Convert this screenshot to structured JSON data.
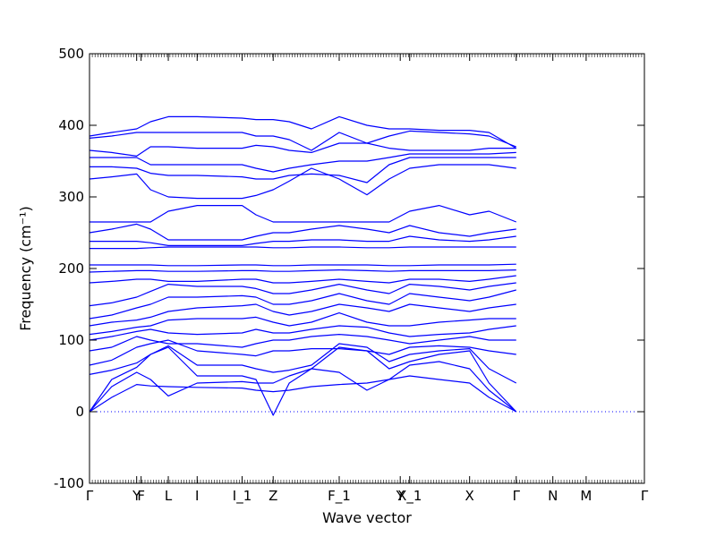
{
  "chart_data": {
    "type": "line",
    "xlabel": "Wave vector",
    "ylabel": "Frequency (cm⁻¹)",
    "ylim": [
      -100,
      500
    ],
    "yticks": [
      -100,
      0,
      100,
      200,
      300,
      400,
      500
    ],
    "xlim": [
      0,
      1
    ],
    "grid": false,
    "line_color": "#0000ff",
    "zero_line": {
      "y": 0,
      "style": "dotted",
      "color": "#0000ff"
    },
    "high_symmetry_points": [
      {
        "label": "Γ",
        "x": 0.0
      },
      {
        "label": "Y",
        "x": 0.085
      },
      {
        "label": "F",
        "x": 0.093
      },
      {
        "label": "L",
        "x": 0.142
      },
      {
        "label": "I",
        "x": 0.194
      },
      {
        "label": "I_1",
        "x": 0.275
      },
      {
        "label": "Z",
        "x": 0.331
      },
      {
        "label": "F_1",
        "x": 0.45
      },
      {
        "label": "Y",
        "x": 0.56
      },
      {
        "label": "X_1",
        "x": 0.577
      },
      {
        "label": "X",
        "x": 0.685
      },
      {
        "label": "Γ",
        "x": 0.769
      },
      {
        "label": "N",
        "x": 0.835
      },
      {
        "label": "M",
        "x": 0.895
      },
      {
        "label": "Γ",
        "x": 1.0
      }
    ],
    "series": [
      {
        "x": [
          0,
          0.04,
          0.085,
          0.11,
          0.142,
          0.194,
          0.275,
          0.3,
          0.331,
          0.36,
          0.4,
          0.45,
          0.5,
          0.54,
          0.577,
          0.63,
          0.685,
          0.72,
          0.769
        ],
        "y": [
          0,
          20,
          38,
          36,
          35,
          34,
          33,
          30,
          28,
          30,
          35,
          38,
          40,
          45,
          50,
          45,
          40,
          20,
          0
        ]
      },
      {
        "x": [
          0,
          0.04,
          0.085,
          0.11,
          0.142,
          0.194,
          0.275,
          0.3,
          0.331,
          0.36,
          0.4,
          0.45,
          0.5,
          0.54,
          0.577,
          0.63,
          0.685,
          0.72,
          0.769
        ],
        "y": [
          0,
          35,
          55,
          45,
          22,
          40,
          42,
          40,
          40,
          50,
          60,
          55,
          30,
          45,
          65,
          70,
          60,
          30,
          0
        ]
      },
      {
        "x": [
          0,
          0.04,
          0.085,
          0.11,
          0.142,
          0.194,
          0.275,
          0.3,
          0.331,
          0.36,
          0.4,
          0.45,
          0.5,
          0.54,
          0.577,
          0.63,
          0.685,
          0.72,
          0.769
        ],
        "y": [
          0,
          45,
          62,
          80,
          90,
          50,
          50,
          45,
          -5,
          40,
          60,
          90,
          85,
          60,
          70,
          80,
          85,
          40,
          0
        ]
      },
      {
        "x": [
          0,
          0.04,
          0.085,
          0.11,
          0.142,
          0.194,
          0.275,
          0.3,
          0.331,
          0.36,
          0.4,
          0.45,
          0.5,
          0.54,
          0.577,
          0.63,
          0.685,
          0.72,
          0.769
        ],
        "y": [
          52,
          58,
          68,
          80,
          92,
          65,
          65,
          60,
          55,
          58,
          65,
          95,
          90,
          70,
          80,
          85,
          88,
          60,
          40
        ]
      },
      {
        "x": [
          0,
          0.04,
          0.085,
          0.11,
          0.142,
          0.194,
          0.275,
          0.3,
          0.331,
          0.36,
          0.4,
          0.45,
          0.5,
          0.54,
          0.577,
          0.63,
          0.685,
          0.72,
          0.769
        ],
        "y": [
          65,
          72,
          90,
          95,
          100,
          85,
          80,
          78,
          85,
          85,
          88,
          88,
          85,
          80,
          90,
          92,
          90,
          85,
          80
        ]
      },
      {
        "x": [
          0,
          0.04,
          0.085,
          0.11,
          0.142,
          0.194,
          0.275,
          0.3,
          0.331,
          0.36,
          0.4,
          0.45,
          0.5,
          0.54,
          0.577,
          0.63,
          0.685,
          0.72,
          0.769
        ],
        "y": [
          85,
          90,
          105,
          100,
          95,
          95,
          90,
          95,
          100,
          100,
          105,
          108,
          105,
          100,
          95,
          100,
          105,
          100,
          100
        ]
      },
      {
        "x": [
          0,
          0.04,
          0.085,
          0.11,
          0.142,
          0.194,
          0.275,
          0.3,
          0.331,
          0.36,
          0.4,
          0.45,
          0.5,
          0.54,
          0.577,
          0.63,
          0.685,
          0.72,
          0.769
        ],
        "y": [
          100,
          105,
          112,
          115,
          110,
          108,
          110,
          115,
          110,
          110,
          115,
          120,
          118,
          110,
          105,
          108,
          110,
          115,
          120
        ]
      },
      {
        "x": [
          0,
          0.04,
          0.085,
          0.11,
          0.142,
          0.194,
          0.275,
          0.3,
          0.331,
          0.36,
          0.4,
          0.45,
          0.5,
          0.54,
          0.577,
          0.63,
          0.685,
          0.72,
          0.769
        ],
        "y": [
          108,
          112,
          118,
          120,
          128,
          130,
          130,
          132,
          125,
          120,
          125,
          138,
          125,
          120,
          120,
          125,
          128,
          130,
          130
        ]
      },
      {
        "x": [
          0,
          0.04,
          0.085,
          0.11,
          0.142,
          0.194,
          0.275,
          0.3,
          0.331,
          0.36,
          0.4,
          0.45,
          0.5,
          0.54,
          0.577,
          0.63,
          0.685,
          0.72,
          0.769
        ],
        "y": [
          120,
          125,
          128,
          132,
          140,
          145,
          148,
          150,
          140,
          135,
          140,
          150,
          145,
          140,
          150,
          145,
          140,
          145,
          150
        ]
      },
      {
        "x": [
          0,
          0.04,
          0.085,
          0.11,
          0.142,
          0.194,
          0.275,
          0.3,
          0.331,
          0.36,
          0.4,
          0.45,
          0.5,
          0.54,
          0.577,
          0.63,
          0.685,
          0.72,
          0.769
        ],
        "y": [
          130,
          135,
          145,
          150,
          160,
          160,
          162,
          160,
          150,
          150,
          155,
          165,
          155,
          150,
          165,
          160,
          155,
          160,
          170
        ]
      },
      {
        "x": [
          0,
          0.04,
          0.085,
          0.11,
          0.142,
          0.194,
          0.275,
          0.3,
          0.331,
          0.36,
          0.4,
          0.45,
          0.5,
          0.54,
          0.577,
          0.63,
          0.685,
          0.72,
          0.769
        ],
        "y": [
          148,
          152,
          160,
          168,
          178,
          175,
          175,
          172,
          165,
          165,
          170,
          178,
          170,
          165,
          178,
          175,
          170,
          175,
          180
        ]
      },
      {
        "x": [
          0,
          0.04,
          0.085,
          0.11,
          0.142,
          0.194,
          0.275,
          0.3,
          0.331,
          0.36,
          0.4,
          0.45,
          0.5,
          0.54,
          0.577,
          0.63,
          0.685,
          0.72,
          0.769
        ],
        "y": [
          180,
          182,
          185,
          185,
          182,
          182,
          185,
          185,
          180,
          180,
          182,
          185,
          182,
          180,
          185,
          185,
          182,
          185,
          190
        ]
      },
      {
        "x": [
          0,
          0.04,
          0.085,
          0.11,
          0.142,
          0.194,
          0.275,
          0.3,
          0.331,
          0.36,
          0.4,
          0.45,
          0.5,
          0.54,
          0.577,
          0.63,
          0.685,
          0.72,
          0.769
        ],
        "y": [
          195,
          196,
          197,
          197,
          196,
          196,
          197,
          197,
          196,
          196,
          197,
          198,
          197,
          196,
          197,
          197,
          197,
          197,
          198
        ]
      },
      {
        "x": [
          0,
          0.04,
          0.085,
          0.11,
          0.142,
          0.194,
          0.275,
          0.3,
          0.331,
          0.36,
          0.4,
          0.45,
          0.5,
          0.54,
          0.577,
          0.63,
          0.685,
          0.72,
          0.769
        ],
        "y": [
          205,
          205,
          205,
          205,
          204,
          204,
          205,
          205,
          204,
          204,
          205,
          205,
          205,
          204,
          204,
          205,
          205,
          205,
          206
        ]
      },
      {
        "x": [
          0,
          0.04,
          0.085,
          0.11,
          0.142,
          0.194,
          0.275,
          0.3,
          0.331,
          0.36,
          0.4,
          0.45,
          0.5,
          0.54,
          0.577,
          0.63,
          0.685,
          0.72,
          0.769
        ],
        "y": [
          228,
          228,
          228,
          229,
          230,
          230,
          230,
          230,
          229,
          229,
          230,
          230,
          229,
          229,
          230,
          230,
          230,
          230,
          230
        ]
      },
      {
        "x": [
          0,
          0.04,
          0.085,
          0.11,
          0.142,
          0.194,
          0.275,
          0.3,
          0.331,
          0.36,
          0.4,
          0.45,
          0.5,
          0.54,
          0.577,
          0.63,
          0.685,
          0.72,
          0.769
        ],
        "y": [
          238,
          238,
          238,
          236,
          232,
          232,
          232,
          235,
          238,
          238,
          240,
          240,
          238,
          238,
          245,
          240,
          238,
          240,
          245
        ]
      },
      {
        "x": [
          0,
          0.04,
          0.085,
          0.11,
          0.142,
          0.194,
          0.275,
          0.3,
          0.331,
          0.36,
          0.4,
          0.45,
          0.5,
          0.54,
          0.577,
          0.63,
          0.685,
          0.72,
          0.769
        ],
        "y": [
          250,
          255,
          262,
          255,
          240,
          240,
          240,
          245,
          250,
          250,
          255,
          260,
          255,
          250,
          260,
          250,
          245,
          250,
          255
        ]
      },
      {
        "x": [
          0,
          0.04,
          0.085,
          0.11,
          0.142,
          0.194,
          0.275,
          0.3,
          0.331,
          0.36,
          0.4,
          0.45,
          0.5,
          0.54,
          0.577,
          0.63,
          0.685,
          0.72,
          0.769
        ],
        "y": [
          265,
          265,
          265,
          265,
          280,
          288,
          288,
          275,
          265,
          265,
          265,
          265,
          265,
          265,
          280,
          288,
          275,
          280,
          265
        ]
      },
      {
        "x": [
          0,
          0.04,
          0.085,
          0.11,
          0.142,
          0.194,
          0.275,
          0.3,
          0.331,
          0.36,
          0.4,
          0.45,
          0.5,
          0.54,
          0.577,
          0.63,
          0.685,
          0.72,
          0.769
        ],
        "y": [
          325,
          328,
          332,
          310,
          300,
          298,
          298,
          302,
          310,
          322,
          340,
          325,
          303,
          325,
          340,
          345,
          345,
          345,
          340
        ]
      },
      {
        "x": [
          0,
          0.04,
          0.085,
          0.11,
          0.142,
          0.194,
          0.275,
          0.3,
          0.331,
          0.36,
          0.4,
          0.45,
          0.5,
          0.54,
          0.577,
          0.63,
          0.685,
          0.72,
          0.769
        ],
        "y": [
          342,
          342,
          340,
          333,
          330,
          330,
          328,
          325,
          325,
          330,
          332,
          330,
          320,
          345,
          355,
          355,
          355,
          355,
          355
        ]
      },
      {
        "x": [
          0,
          0.04,
          0.085,
          0.11,
          0.142,
          0.194,
          0.275,
          0.3,
          0.331,
          0.36,
          0.4,
          0.45,
          0.5,
          0.54,
          0.577,
          0.63,
          0.685,
          0.72,
          0.769
        ],
        "y": [
          355,
          355,
          355,
          345,
          345,
          345,
          345,
          340,
          335,
          340,
          345,
          350,
          350,
          355,
          360,
          360,
          360,
          360,
          362
        ]
      },
      {
        "x": [
          0,
          0.04,
          0.085,
          0.11,
          0.142,
          0.194,
          0.275,
          0.3,
          0.331,
          0.36,
          0.4,
          0.45,
          0.5,
          0.54,
          0.577,
          0.63,
          0.685,
          0.72,
          0.769
        ],
        "y": [
          365,
          362,
          357,
          370,
          370,
          368,
          368,
          372,
          370,
          365,
          362,
          375,
          375,
          368,
          365,
          365,
          365,
          368,
          368
        ]
      },
      {
        "x": [
          0,
          0.04,
          0.085,
          0.11,
          0.142,
          0.194,
          0.275,
          0.3,
          0.331,
          0.36,
          0.4,
          0.45,
          0.5,
          0.54,
          0.577,
          0.63,
          0.685,
          0.72,
          0.769
        ],
        "y": [
          382,
          385,
          390,
          390,
          390,
          390,
          390,
          385,
          385,
          380,
          365,
          390,
          375,
          385,
          392,
          390,
          388,
          385,
          370
        ]
      },
      {
        "x": [
          0,
          0.04,
          0.085,
          0.11,
          0.142,
          0.194,
          0.275,
          0.3,
          0.331,
          0.36,
          0.4,
          0.45,
          0.5,
          0.54,
          0.577,
          0.63,
          0.685,
          0.72,
          0.769
        ],
        "y": [
          385,
          390,
          395,
          405,
          412,
          412,
          410,
          408,
          408,
          405,
          395,
          412,
          400,
          395,
          395,
          393,
          393,
          390,
          368
        ]
      }
    ]
  }
}
